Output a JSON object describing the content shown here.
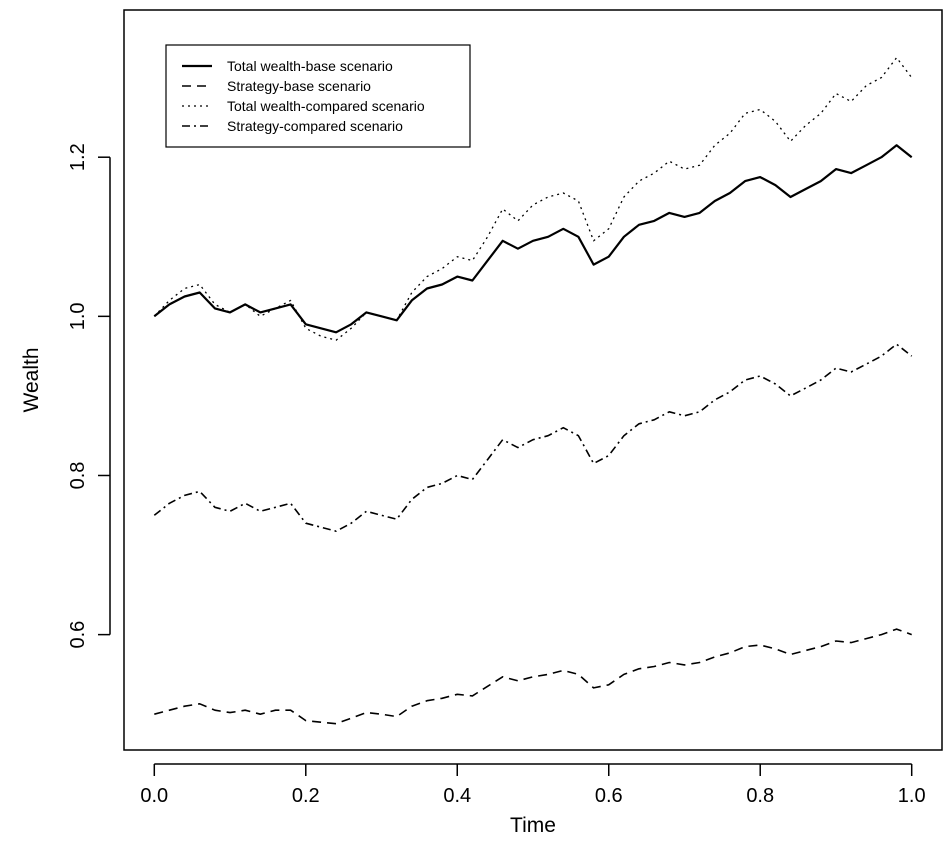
{
  "chart_data": {
    "type": "line",
    "xlabel": "Time",
    "ylabel": "Wealth",
    "xlim": [
      -0.04,
      1.04
    ],
    "ylim": [
      0.455,
      1.385
    ],
    "xticks": [
      0.0,
      0.2,
      0.4,
      0.6,
      0.8,
      1.0
    ],
    "xtick_labels": [
      "0.0",
      "0.2",
      "0.4",
      "0.6",
      "0.8",
      "1.0"
    ],
    "yticks": [
      0.6,
      0.8,
      1.0,
      1.2
    ],
    "ytick_labels": [
      "0.6",
      "0.8",
      "1.0",
      "1.2"
    ],
    "grid": false,
    "legend_position": "top-left",
    "x": [
      0.0,
      0.02,
      0.04,
      0.06,
      0.08,
      0.1,
      0.12,
      0.14,
      0.16,
      0.18,
      0.2,
      0.22,
      0.24,
      0.26,
      0.28,
      0.3,
      0.32,
      0.34,
      0.36,
      0.38,
      0.4,
      0.42,
      0.44,
      0.46,
      0.48,
      0.5,
      0.52,
      0.54,
      0.56,
      0.58,
      0.6,
      0.62,
      0.64,
      0.66,
      0.68,
      0.7,
      0.72,
      0.74,
      0.76,
      0.78,
      0.8,
      0.82,
      0.84,
      0.86,
      0.88,
      0.9,
      0.92,
      0.94,
      0.96,
      0.98,
      1.0
    ],
    "series": [
      {
        "name": "Total wealth-base scenario",
        "dash": "solid",
        "values": [
          1.0,
          1.015,
          1.025,
          1.03,
          1.01,
          1.005,
          1.015,
          1.005,
          1.01,
          1.015,
          0.99,
          0.985,
          0.98,
          0.99,
          1.005,
          1.0,
          0.995,
          1.02,
          1.035,
          1.04,
          1.05,
          1.045,
          1.07,
          1.095,
          1.085,
          1.095,
          1.1,
          1.11,
          1.1,
          1.065,
          1.075,
          1.1,
          1.115,
          1.12,
          1.13,
          1.125,
          1.13,
          1.145,
          1.155,
          1.17,
          1.175,
          1.165,
          1.15,
          1.16,
          1.17,
          1.185,
          1.18,
          1.19,
          1.2,
          1.215,
          1.2
        ]
      },
      {
        "name": "Strategy-base scenario",
        "dash": "dashed",
        "values": [
          0.5,
          0.505,
          0.51,
          0.513,
          0.505,
          0.502,
          0.505,
          0.5,
          0.505,
          0.505,
          0.492,
          0.49,
          0.488,
          0.495,
          0.502,
          0.5,
          0.497,
          0.51,
          0.517,
          0.52,
          0.525,
          0.523,
          0.535,
          0.547,
          0.542,
          0.547,
          0.55,
          0.555,
          0.55,
          0.533,
          0.537,
          0.55,
          0.557,
          0.56,
          0.565,
          0.562,
          0.565,
          0.572,
          0.577,
          0.585,
          0.587,
          0.582,
          0.575,
          0.58,
          0.585,
          0.592,
          0.59,
          0.595,
          0.6,
          0.607,
          0.6
        ]
      },
      {
        "name": "Total wealth-compared scenario",
        "dash": "dotted",
        "values": [
          1.0,
          1.02,
          1.035,
          1.04,
          1.015,
          1.005,
          1.015,
          1.0,
          1.01,
          1.02,
          0.985,
          0.975,
          0.97,
          0.985,
          1.005,
          1.0,
          0.995,
          1.03,
          1.05,
          1.06,
          1.075,
          1.07,
          1.1,
          1.135,
          1.12,
          1.14,
          1.15,
          1.155,
          1.145,
          1.095,
          1.11,
          1.15,
          1.17,
          1.18,
          1.195,
          1.185,
          1.19,
          1.215,
          1.23,
          1.255,
          1.26,
          1.245,
          1.22,
          1.24,
          1.255,
          1.28,
          1.27,
          1.29,
          1.3,
          1.325,
          1.3
        ]
      },
      {
        "name": "Strategy-compared scenario",
        "dash": "dashdot",
        "values": [
          0.75,
          0.765,
          0.775,
          0.78,
          0.76,
          0.755,
          0.765,
          0.755,
          0.76,
          0.765,
          0.74,
          0.735,
          0.73,
          0.74,
          0.755,
          0.75,
          0.745,
          0.77,
          0.785,
          0.79,
          0.8,
          0.795,
          0.82,
          0.845,
          0.835,
          0.845,
          0.85,
          0.86,
          0.85,
          0.815,
          0.825,
          0.85,
          0.865,
          0.87,
          0.88,
          0.875,
          0.88,
          0.895,
          0.905,
          0.92,
          0.925,
          0.915,
          0.9,
          0.91,
          0.92,
          0.935,
          0.93,
          0.94,
          0.95,
          0.965,
          0.95
        ]
      }
    ]
  }
}
